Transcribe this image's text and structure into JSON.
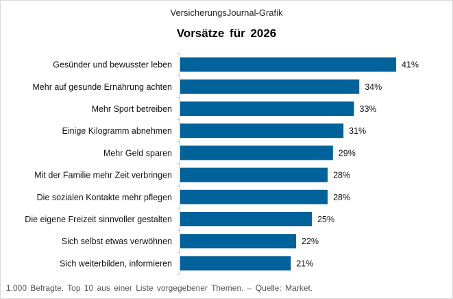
{
  "header": {
    "brand": "VersicherungsJournal-Grafik"
  },
  "footer": {
    "note": "1.000 Befragte. Top 10 aus einer Liste vorgegebener Themen. – Quelle: Market."
  },
  "chart_data": {
    "type": "bar",
    "orientation": "horizontal",
    "title": "Vorsätze für 2026",
    "categories": [
      "Gesünder und bewusster leben",
      "Mehr auf gesunde Ernährung achten",
      "Mehr Sport betreiben",
      "Einige Kilogramm abnehmen",
      "Mehr Geld sparen",
      "Mit der Familie mehr Zeit verbringen",
      "Die sozialen Kontakte mehr pflegen",
      "Die eigene Freizeit sinnvoller gestalten",
      "Sich selbst etwas verwöhnen",
      "Sich weiterbilden, informieren"
    ],
    "values": [
      41,
      34,
      33,
      31,
      29,
      28,
      28,
      25,
      22,
      21
    ],
    "labels": [
      "41%",
      "34%",
      "33%",
      "31%",
      "29%",
      "28%",
      "28%",
      "25%",
      "22%",
      "21%"
    ],
    "unit": "%",
    "xlim": [
      0,
      41
    ],
    "grid": false,
    "bar_color": "#00629b"
  }
}
